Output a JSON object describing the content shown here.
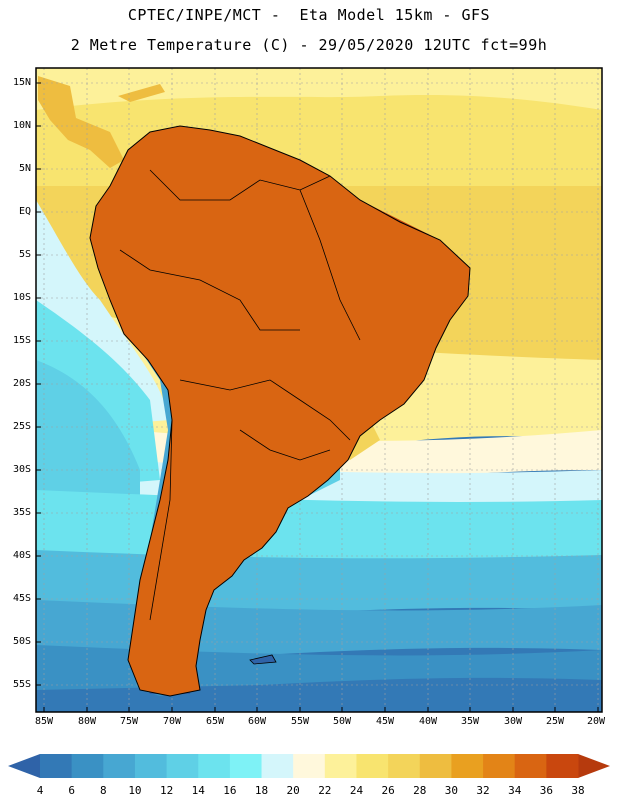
{
  "title": {
    "line1": "CPTEC/INPE/MCT -  Eta Model 15km - GFS",
    "line2": "2 Metre Temperature (C) - 29/05/2020 12UTC fct=99h"
  },
  "axes": {
    "lat_labels": [
      "15N",
      "10N",
      "5N",
      "EQ",
      "5S",
      "10S",
      "15S",
      "20S",
      "25S",
      "30S",
      "35S",
      "40S",
      "45S",
      "50S",
      "55S"
    ],
    "lon_labels": [
      "85W",
      "80W",
      "75W",
      "70W",
      "65W",
      "60W",
      "55W",
      "50W",
      "45W",
      "40W",
      "35W",
      "30W",
      "25W",
      "20W"
    ]
  },
  "colorbar": {
    "labels": [
      "4",
      "6",
      "8",
      "10",
      "12",
      "14",
      "16",
      "18",
      "20",
      "22",
      "24",
      "26",
      "28",
      "30",
      "32",
      "34",
      "36",
      "38"
    ],
    "colors": [
      "#2f63a8",
      "#3379b6",
      "#3a91c4",
      "#47a7d2",
      "#52bcdd",
      "#5fd0e6",
      "#6ce3ee",
      "#7ef2f6",
      "#d4f6fb",
      "#fff8dc",
      "#fdf19a",
      "#f8e46f",
      "#f3d45a",
      "#eebd40",
      "#e9a020",
      "#e38417",
      "#d96512",
      "#c9470e",
      "#b63a0d"
    ]
  },
  "colors": {
    "frame": "#000000",
    "grid": "#a0a0a0"
  }
}
